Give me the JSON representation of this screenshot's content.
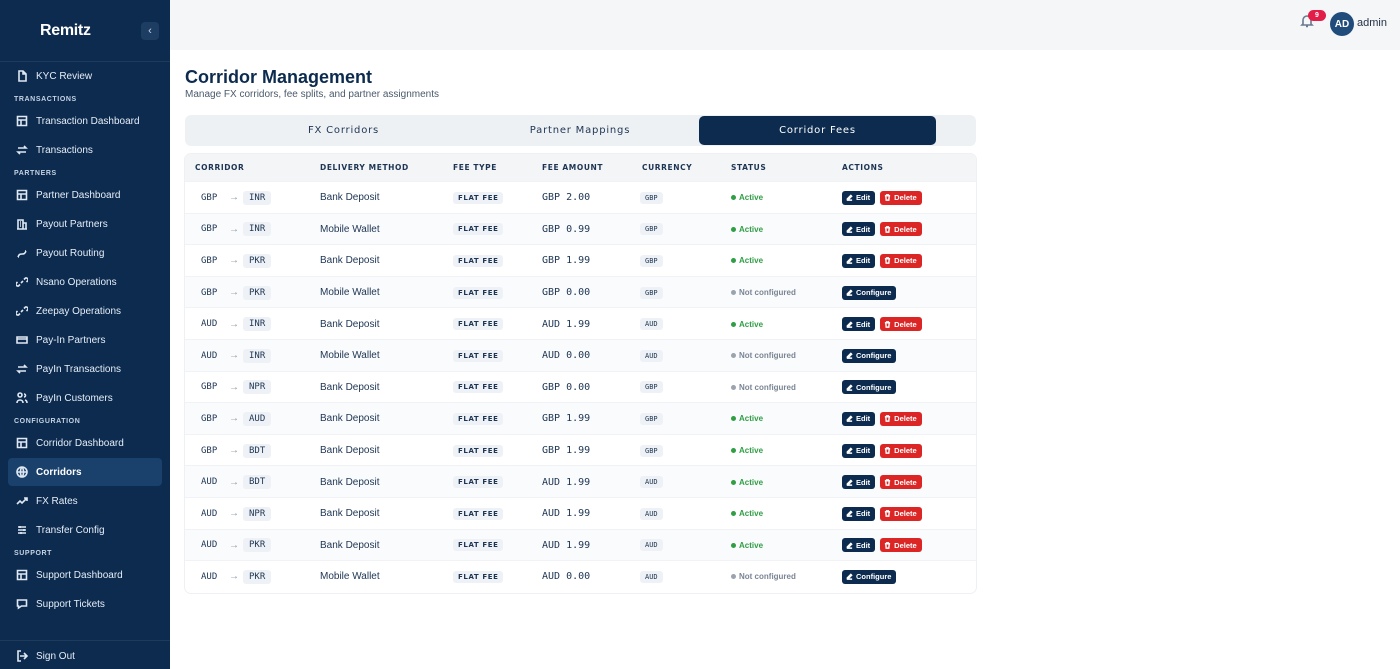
{
  "brand": {
    "logo": "Remitz",
    "tagline": ""
  },
  "sidebar": {
    "collapse_icon": "chevron-left-icon",
    "top_items": [
      {
        "label": "KYC Review",
        "icon": "document-icon"
      }
    ],
    "sections": [
      {
        "label": "TRANSACTIONS",
        "items": [
          {
            "label": "Transaction Dashboard",
            "icon": "dashboard-icon"
          },
          {
            "label": "Transactions",
            "icon": "swap-icon"
          }
        ]
      },
      {
        "label": "PARTNERS",
        "items": [
          {
            "label": "Partner Dashboard",
            "icon": "dashboard-icon"
          },
          {
            "label": "Payout Partners",
            "icon": "building-icon"
          },
          {
            "label": "Payout Routing",
            "icon": "route-icon"
          },
          {
            "label": "Nsano Operations",
            "icon": "link-icon"
          },
          {
            "label": "Zeepay Operations",
            "icon": "link-icon"
          },
          {
            "label": "Pay-In Partners",
            "icon": "card-icon"
          },
          {
            "label": "PayIn Transactions",
            "icon": "swap-icon"
          },
          {
            "label": "PayIn Customers",
            "icon": "users-icon"
          }
        ]
      },
      {
        "label": "CONFIGURATION",
        "items": [
          {
            "label": "Corridor Dashboard",
            "icon": "dashboard-icon"
          },
          {
            "label": "Corridors",
            "icon": "globe-icon",
            "active": true
          },
          {
            "label": "FX Rates",
            "icon": "trend-icon"
          },
          {
            "label": "Transfer Config",
            "icon": "sliders-icon"
          }
        ]
      },
      {
        "label": "SUPPORT",
        "items": [
          {
            "label": "Support Dashboard",
            "icon": "dashboard-icon"
          },
          {
            "label": "Support Tickets",
            "icon": "chat-icon"
          }
        ]
      }
    ],
    "signout": {
      "label": "Sign Out",
      "icon": "logout-icon"
    }
  },
  "topbar": {
    "notifications_count": "9",
    "avatar_initials": "AD",
    "username": "admin"
  },
  "page": {
    "title": "Corridor Management",
    "subtitle": "Manage FX corridors, fee splits, and partner assignments"
  },
  "tabs": [
    {
      "label": "FX Corridors"
    },
    {
      "label": "Partner Mappings"
    },
    {
      "label": "Corridor Fees",
      "active": true
    }
  ],
  "table": {
    "headers": [
      "CORRIDOR",
      "DELIVERY METHOD",
      "FEE TYPE",
      "FEE AMOUNT",
      "CURRENCY",
      "STATUS",
      "ACTIONS"
    ],
    "arrow": "→",
    "edit_label": "Edit",
    "delete_label": "Delete",
    "configure_label": "Configure",
    "rows": [
      {
        "from": "GBP",
        "to": "INR",
        "method": "Bank Deposit",
        "fee_type": "FLAT FEE",
        "amount": "GBP 2.00",
        "currency": "GBP",
        "status": "Active"
      },
      {
        "from": "GBP",
        "to": "INR",
        "method": "Mobile Wallet",
        "fee_type": "FLAT FEE",
        "amount": "GBP 0.99",
        "currency": "GBP",
        "status": "Active"
      },
      {
        "from": "GBP",
        "to": "PKR",
        "method": "Bank Deposit",
        "fee_type": "FLAT FEE",
        "amount": "GBP 1.99",
        "currency": "GBP",
        "status": "Active"
      },
      {
        "from": "GBP",
        "to": "PKR",
        "method": "Mobile Wallet",
        "fee_type": "FLAT FEE",
        "amount": "GBP 0.00",
        "currency": "GBP",
        "status": "Not configured"
      },
      {
        "from": "AUD",
        "to": "INR",
        "method": "Bank Deposit",
        "fee_type": "FLAT FEE",
        "amount": "AUD 1.99",
        "currency": "AUD",
        "status": "Active"
      },
      {
        "from": "AUD",
        "to": "INR",
        "method": "Mobile Wallet",
        "fee_type": "FLAT FEE",
        "amount": "AUD 0.00",
        "currency": "AUD",
        "status": "Not configured"
      },
      {
        "from": "GBP",
        "to": "NPR",
        "method": "Bank Deposit",
        "fee_type": "FLAT FEE",
        "amount": "GBP 0.00",
        "currency": "GBP",
        "status": "Not configured"
      },
      {
        "from": "GBP",
        "to": "AUD",
        "method": "Bank Deposit",
        "fee_type": "FLAT FEE",
        "amount": "GBP 1.99",
        "currency": "GBP",
        "status": "Active"
      },
      {
        "from": "GBP",
        "to": "BDT",
        "method": "Bank Deposit",
        "fee_type": "FLAT FEE",
        "amount": "GBP 1.99",
        "currency": "GBP",
        "status": "Active"
      },
      {
        "from": "AUD",
        "to": "BDT",
        "method": "Bank Deposit",
        "fee_type": "FLAT FEE",
        "amount": "AUD 1.99",
        "currency": "AUD",
        "status": "Active"
      },
      {
        "from": "AUD",
        "to": "NPR",
        "method": "Bank Deposit",
        "fee_type": "FLAT FEE",
        "amount": "AUD 1.99",
        "currency": "AUD",
        "status": "Active"
      },
      {
        "from": "AUD",
        "to": "PKR",
        "method": "Bank Deposit",
        "fee_type": "FLAT FEE",
        "amount": "AUD 1.99",
        "currency": "AUD",
        "status": "Active"
      },
      {
        "from": "AUD",
        "to": "PKR",
        "method": "Mobile Wallet",
        "fee_type": "FLAT FEE",
        "amount": "AUD 0.00",
        "currency": "AUD",
        "status": "Not configured"
      }
    ]
  },
  "colors": {
    "sidebar_bg": "#0c2b4f",
    "active_green": "#2f9e44",
    "delete_red": "#dc2626",
    "primary": "#0c2b4f"
  }
}
